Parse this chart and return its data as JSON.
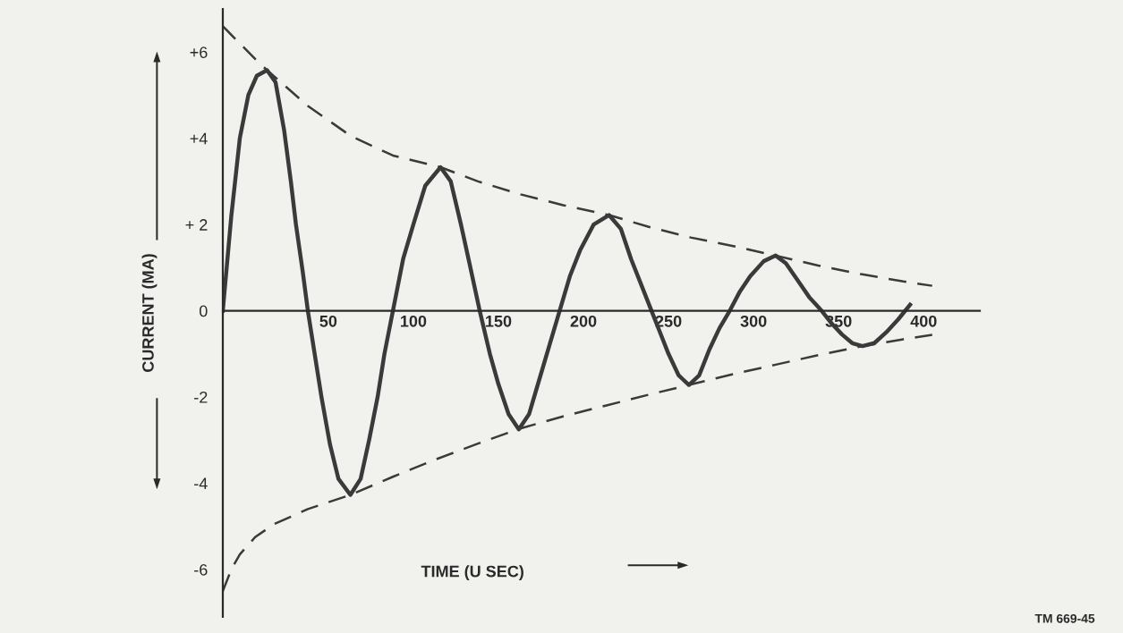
{
  "chart_data": {
    "type": "line",
    "xlabel": "TIME (U SEC)",
    "ylabel": "CURRENT (MA)",
    "xlim": [
      -12,
      433
    ],
    "ylim": [
      -7.1,
      7.0
    ],
    "xticks": [
      50,
      100,
      150,
      200,
      250,
      300,
      350,
      400
    ],
    "yticks": [
      {
        "value": 6,
        "label": "+6"
      },
      {
        "value": 4,
        "label": "+4"
      },
      {
        "value": 2,
        "label": "+ 2"
      },
      0,
      {
        "value": -2,
        "label": "-2"
      },
      {
        "value": -4,
        "label": "-4"
      },
      {
        "value": -6,
        "label": "-6"
      }
    ],
    "grid": false,
    "legend": false,
    "marker": "none",
    "series": [
      {
        "color": "#3a3a3a",
        "line_style": "solid",
        "x": [
          -12,
          -7,
          -2,
          3,
          8,
          14,
          19,
          24,
          28,
          31,
          35,
          38,
          42,
          46,
          51,
          56,
          63,
          69,
          74,
          79,
          83,
          88,
          94,
          100,
          107,
          116,
          122,
          128,
          133,
          139,
          145,
          150,
          156,
          162,
          168,
          174,
          180,
          186,
          192,
          198,
          206,
          215,
          222,
          228,
          234,
          240,
          245,
          250,
          256,
          262,
          268,
          274,
          280,
          286,
          292,
          298,
          306,
          313,
          319,
          326,
          333,
          340,
          346,
          352,
          358,
          364,
          371,
          378,
          385,
          392
        ],
        "values": [
          0,
          2.2,
          4.0,
          5.0,
          5.45,
          5.58,
          5.3,
          4.2,
          3.0,
          2.0,
          0.9,
          0,
          -1.0,
          -2.0,
          -3.1,
          -3.9,
          -4.27,
          -3.9,
          -3.0,
          -2.0,
          -1.0,
          0,
          1.2,
          2.0,
          2.9,
          3.33,
          3.0,
          2.0,
          1.1,
          0,
          -1.0,
          -1.7,
          -2.4,
          -2.75,
          -2.4,
          -1.6,
          -0.8,
          0,
          0.8,
          1.4,
          2.0,
          2.22,
          1.9,
          1.2,
          0.6,
          0,
          -0.5,
          -1.0,
          -1.5,
          -1.72,
          -1.5,
          -0.9,
          -0.4,
          0,
          0.45,
          0.8,
          1.15,
          1.28,
          1.1,
          0.7,
          0.3,
          0,
          -0.3,
          -0.55,
          -0.75,
          -0.82,
          -0.75,
          -0.5,
          -0.2,
          0.14
        ]
      },
      {
        "color": "#3a3a3a",
        "line_style": "dashed",
        "x": [
          -12,
          -2,
          8,
          14,
          38,
          63,
          88,
          116,
          138,
          163,
          188,
          215,
          238,
          263,
          288,
          313,
          338,
          363,
          388,
          405
        ],
        "values": [
          6.6,
          6.2,
          5.8,
          5.58,
          4.75,
          4.06,
          3.6,
          3.33,
          3.0,
          2.7,
          2.45,
          2.22,
          1.95,
          1.7,
          1.5,
          1.28,
          1.05,
          0.85,
          0.68,
          0.58
        ]
      },
      {
        "color": "#3a3a3a",
        "line_style": "dashed",
        "x": [
          -12,
          -7,
          -2,
          7,
          18,
          38,
          63,
          88,
          113,
          138,
          162,
          188,
          213,
          238,
          262,
          288,
          313,
          338,
          364,
          388,
          405
        ],
        "values": [
          -6.5,
          -6.0,
          -5.65,
          -5.25,
          -4.95,
          -4.6,
          -4.27,
          -3.85,
          -3.45,
          -3.08,
          -2.74,
          -2.45,
          -2.2,
          -1.95,
          -1.72,
          -1.47,
          -1.25,
          -1.03,
          -0.82,
          -0.66,
          -0.56
        ]
      }
    ],
    "annotations": [
      "TM 669-45"
    ]
  }
}
